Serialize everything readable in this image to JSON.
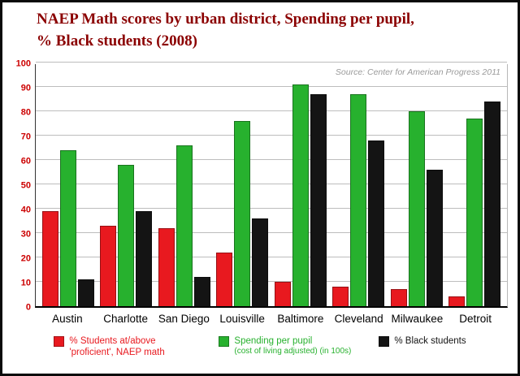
{
  "title": {
    "line1": "NAEP Math scores by urban district, Spending per pupil,",
    "line2": "% Black students (2008)"
  },
  "source_note": "Source: Center for American Progress 2011",
  "colors": {
    "title": "#8b0000",
    "y_ticks": "#cc0000",
    "series_red": "#e8191f",
    "series_green": "#27b12e",
    "series_black": "#141414"
  },
  "chart_data": {
    "type": "bar",
    "categories": [
      "Austin",
      "Charlotte",
      "San Diego",
      "Louisville",
      "Baltimore",
      "Cleveland",
      "Milwaukee",
      "Detroit"
    ],
    "series": [
      {
        "name": "% Students at/above 'proficient', NAEP math",
        "color": "#e8191f",
        "values": [
          39,
          33,
          32,
          22,
          10,
          8,
          7,
          4
        ]
      },
      {
        "name": "Spending per pupil",
        "subtitle": "(cost of living adjusted) (in 100s)",
        "color": "#27b12e",
        "values": [
          64,
          58,
          66,
          76,
          91,
          87,
          80,
          77
        ]
      },
      {
        "name": "% Black students",
        "color": "#141414",
        "values": [
          11,
          39,
          12,
          36,
          87,
          68,
          56,
          84
        ]
      }
    ],
    "title": "NAEP Math scores by urban district, Spending per pupil, % Black students (2008)",
    "xlabel": "",
    "ylabel": "",
    "ylim": [
      0,
      100
    ],
    "ytick_step": 10,
    "grid": true,
    "legend_position": "bottom"
  }
}
